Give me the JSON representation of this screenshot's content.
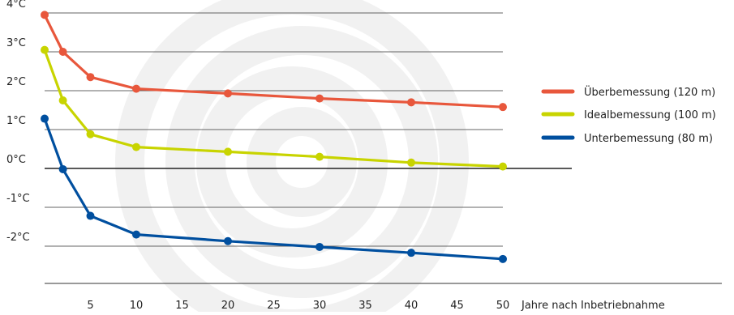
{
  "chart_data": {
    "type": "line",
    "title": "",
    "xlabel": "Jahre nach Inbetriebnahme",
    "ylabel": "",
    "xlim": [
      0,
      50
    ],
    "ylim": [
      -3,
      4
    ],
    "x_ticks": [
      5,
      10,
      15,
      20,
      25,
      30,
      35,
      40,
      45,
      50
    ],
    "y_ticks": [
      {
        "value": 4,
        "label": "4°C"
      },
      {
        "value": 3,
        "label": "3°C"
      },
      {
        "value": 2,
        "label": "2°C"
      },
      {
        "value": 1,
        "label": "1°C"
      },
      {
        "value": 0,
        "label": "0°C"
      },
      {
        "value": -1,
        "label": "-1°C"
      },
      {
        "value": -2,
        "label": "-2°C"
      }
    ],
    "grid": true,
    "legend_position": "right",
    "series": [
      {
        "name": "Überbemessung (120 m)",
        "color": "#e8573c",
        "points": [
          [
            0,
            3.95
          ],
          [
            2,
            3.0
          ],
          [
            5,
            2.35
          ],
          [
            10,
            2.05
          ],
          [
            20,
            1.93
          ],
          [
            30,
            1.8
          ],
          [
            40,
            1.7
          ],
          [
            50,
            1.58
          ]
        ]
      },
      {
        "name": "Idealbemessung (100 m)",
        "color": "#c8d400",
        "points": [
          [
            0,
            3.05
          ],
          [
            2,
            1.75
          ],
          [
            5,
            0.88
          ],
          [
            10,
            0.55
          ],
          [
            20,
            0.43
          ],
          [
            30,
            0.3
          ],
          [
            40,
            0.15
          ],
          [
            50,
            0.05
          ]
        ]
      },
      {
        "name": "Unterbemessung (80 m)",
        "color": "#004f9f",
        "points": [
          [
            0,
            1.28
          ],
          [
            2,
            -0.02
          ],
          [
            5,
            -1.22
          ],
          [
            10,
            -1.7
          ],
          [
            20,
            -1.87
          ],
          [
            30,
            -2.02
          ],
          [
            40,
            -2.17
          ],
          [
            50,
            -2.33
          ]
        ]
      }
    ]
  }
}
